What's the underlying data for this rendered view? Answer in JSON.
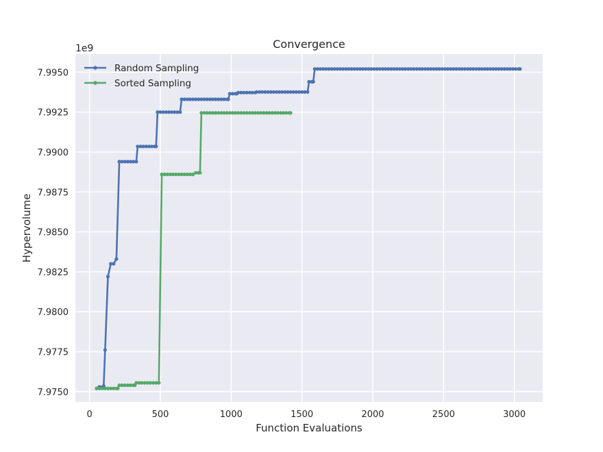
{
  "chart_data": {
    "type": "line",
    "title": "Convergence",
    "xlabel": "Function Evaluations",
    "ylabel": "Hypervolume",
    "y_offset_label": "1e9",
    "xlim": [
      -100,
      3200
    ],
    "ylim": [
      7.97435,
      7.99613
    ],
    "x_ticks": [
      0,
      500,
      1000,
      1500,
      2000,
      2500,
      3000
    ],
    "y_ticks": [
      7.975,
      7.9775,
      7.98,
      7.9825,
      7.985,
      7.9875,
      7.99,
      7.9925,
      7.995
    ],
    "y_tick_labels": [
      "7.9750",
      "7.9775",
      "7.9800",
      "7.9825",
      "7.9850",
      "7.9875",
      "7.9900",
      "7.9925",
      "7.9950"
    ],
    "grid": true,
    "legend_position": "top-left",
    "series": [
      {
        "name": "Random Sampling",
        "color": "#4c72b0",
        "steps": [
          [
            50,
            7.9752
          ],
          [
            70,
            7.9753
          ],
          [
            100,
            7.97535
          ],
          [
            110,
            7.9776
          ],
          [
            130,
            7.9822
          ],
          [
            150,
            7.983
          ],
          [
            170,
            7.983
          ],
          [
            190,
            7.9833
          ],
          [
            210,
            7.9894
          ],
          [
            330,
            7.9894
          ],
          [
            340,
            7.99035
          ],
          [
            470,
            7.99035
          ],
          [
            480,
            7.9925
          ],
          [
            640,
            7.9925
          ],
          [
            650,
            7.9933
          ],
          [
            980,
            7.9933
          ],
          [
            990,
            7.99365
          ],
          [
            1040,
            7.99365
          ],
          [
            1050,
            7.99372
          ],
          [
            1170,
            7.99372
          ],
          [
            1180,
            7.99376
          ],
          [
            1540,
            7.99376
          ],
          [
            1550,
            7.9944
          ],
          [
            1580,
            7.9944
          ],
          [
            1590,
            7.9952
          ],
          [
            3040,
            7.9952
          ]
        ]
      },
      {
        "name": "Sorted Sampling",
        "color": "#55a868",
        "steps": [
          [
            50,
            7.9752
          ],
          [
            200,
            7.9752
          ],
          [
            210,
            7.9754
          ],
          [
            320,
            7.9754
          ],
          [
            330,
            7.97555
          ],
          [
            490,
            7.97555
          ],
          [
            510,
            7.9886
          ],
          [
            730,
            7.9886
          ],
          [
            750,
            7.9887
          ],
          [
            780,
            7.9887
          ],
          [
            790,
            7.99245
          ],
          [
            1420,
            7.99245
          ]
        ]
      }
    ]
  }
}
